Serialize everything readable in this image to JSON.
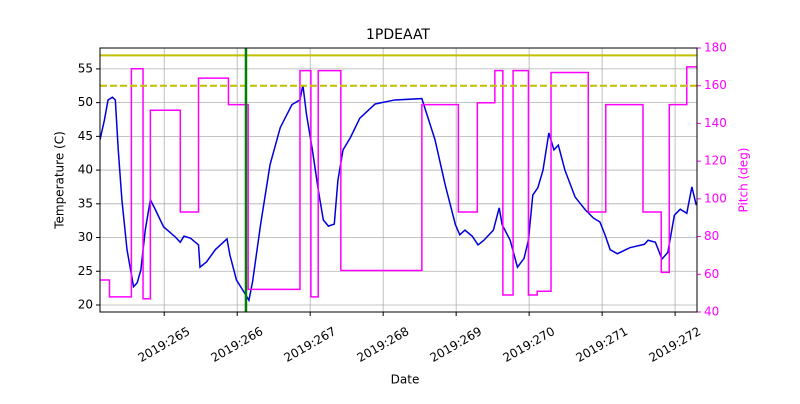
{
  "chart_data": {
    "type": "line",
    "title": "1PDEAAT",
    "x_label": "Date",
    "y_label": "Temperature (C)",
    "y2_label": "Pitch (deg)",
    "y2_color": "#ff00ff",
    "grid": true,
    "xlim": [
      264.12,
      272.3
    ],
    "xticks": [
      {
        "value": 265,
        "label": "2019:265"
      },
      {
        "value": 266,
        "label": "2019:266"
      },
      {
        "value": 267,
        "label": "2019:267"
      },
      {
        "value": 268,
        "label": "2019:268"
      },
      {
        "value": 269,
        "label": "2019:269"
      },
      {
        "value": 270,
        "label": "2019:270"
      },
      {
        "value": 271,
        "label": "2019:271"
      },
      {
        "value": 272,
        "label": "2019:272"
      }
    ],
    "ylim": [
      18.96,
      58.1
    ],
    "yticks": [
      20,
      25,
      30,
      35,
      40,
      45,
      50,
      55
    ],
    "y2lim": [
      40,
      180
    ],
    "y2ticks": [
      40,
      60,
      80,
      100,
      120,
      140,
      160,
      180
    ],
    "hlines": [
      {
        "value": 57,
        "color": "#bfbf00",
        "style": "solid"
      },
      {
        "value": 52.5,
        "color": "#bfbf00",
        "style": "dashed"
      }
    ],
    "vlines": [
      {
        "value": 266.12,
        "color": "#008000"
      }
    ],
    "series": [
      {
        "color": "#0000dd",
        "x": [
          264.12,
          264.18,
          264.23,
          264.29,
          264.33,
          264.37,
          264.42,
          264.49,
          264.58,
          264.63,
          264.68,
          264.74,
          264.81,
          264.88,
          264.99,
          265.15,
          265.22,
          265.27,
          265.36,
          265.47,
          265.49,
          265.58,
          265.7,
          265.86,
          265.9,
          265.99,
          266.1,
          266.16,
          266.21,
          266.32,
          266.45,
          266.59,
          266.75,
          266.86,
          266.9,
          266.95,
          267.03,
          267.11,
          267.18,
          267.25,
          267.33,
          267.38,
          267.45,
          267.55,
          267.68,
          267.89,
          268.16,
          268.53,
          268.71,
          268.85,
          268.99,
          269.05,
          269.12,
          269.22,
          269.3,
          269.38,
          269.51,
          269.59,
          269.63,
          269.74,
          269.84,
          269.93,
          269.99,
          270.05,
          270.12,
          270.19,
          270.27,
          270.34,
          270.4,
          270.49,
          270.63,
          270.77,
          270.88,
          270.97,
          271.04,
          271.11,
          271.21,
          271.38,
          271.58,
          271.63,
          271.73,
          271.82,
          271.9,
          271.99,
          272.07,
          272.16,
          272.23,
          272.29
        ],
        "values": [
          44.5,
          47.4,
          50.4,
          50.8,
          50.4,
          43.0,
          35.6,
          28.2,
          22.7,
          23.3,
          25.2,
          31.1,
          35.6,
          34.1,
          31.6,
          30.1,
          29.3,
          30.2,
          29.9,
          28.9,
          25.6,
          26.4,
          28.2,
          29.8,
          27.4,
          23.7,
          21.8,
          20.7,
          23.4,
          31.9,
          40.8,
          46.3,
          49.7,
          50.4,
          52.6,
          48.2,
          43.0,
          37.1,
          32.6,
          31.7,
          32.0,
          38.5,
          43.0,
          44.8,
          47.7,
          49.8,
          50.4,
          50.6,
          44.5,
          37.8,
          31.9,
          30.4,
          31.1,
          30.2,
          28.9,
          29.6,
          31.1,
          34.4,
          31.9,
          29.6,
          25.6,
          26.9,
          29.6,
          36.3,
          37.4,
          40.0,
          45.5,
          43.0,
          43.7,
          40.0,
          36.0,
          34.1,
          32.9,
          32.3,
          30.4,
          28.2,
          27.6,
          28.5,
          29.0,
          29.6,
          29.3,
          26.8,
          27.8,
          33.3,
          34.2,
          33.6,
          37.5,
          34.8
        ]
      },
      {
        "color": "#ff00ff",
        "axis": "y2",
        "x": [
          264.12,
          264.25,
          264.25,
          264.55,
          264.55,
          264.71,
          264.71,
          264.81,
          264.81,
          265.22,
          265.22,
          265.47,
          265.47,
          265.88,
          265.88,
          266.15,
          266.15,
          266.86,
          266.86,
          267.01,
          267.01,
          267.11,
          267.11,
          267.42,
          267.42,
          268.53,
          268.53,
          269.03,
          269.03,
          269.29,
          269.29,
          269.53,
          269.53,
          269.64,
          269.64,
          269.78,
          269.78,
          269.99,
          269.99,
          270.11,
          270.11,
          270.3,
          270.3,
          270.81,
          270.81,
          271.05,
          271.05,
          271.56,
          271.56,
          271.81,
          271.81,
          271.92,
          271.92,
          272.16,
          272.16,
          272.3
        ],
        "values": [
          57,
          57,
          48,
          48,
          169,
          169,
          47,
          47,
          147,
          147,
          93,
          93,
          164,
          164,
          150,
          150,
          52,
          52,
          168,
          168,
          48,
          48,
          168,
          168,
          62,
          62,
          150,
          150,
          93,
          93,
          151,
          151,
          168,
          168,
          49,
          49,
          168,
          168,
          49,
          49,
          51,
          51,
          167,
          167,
          93,
          93,
          150,
          150,
          93,
          93,
          61,
          61,
          150,
          150,
          170,
          170
        ]
      }
    ]
  }
}
